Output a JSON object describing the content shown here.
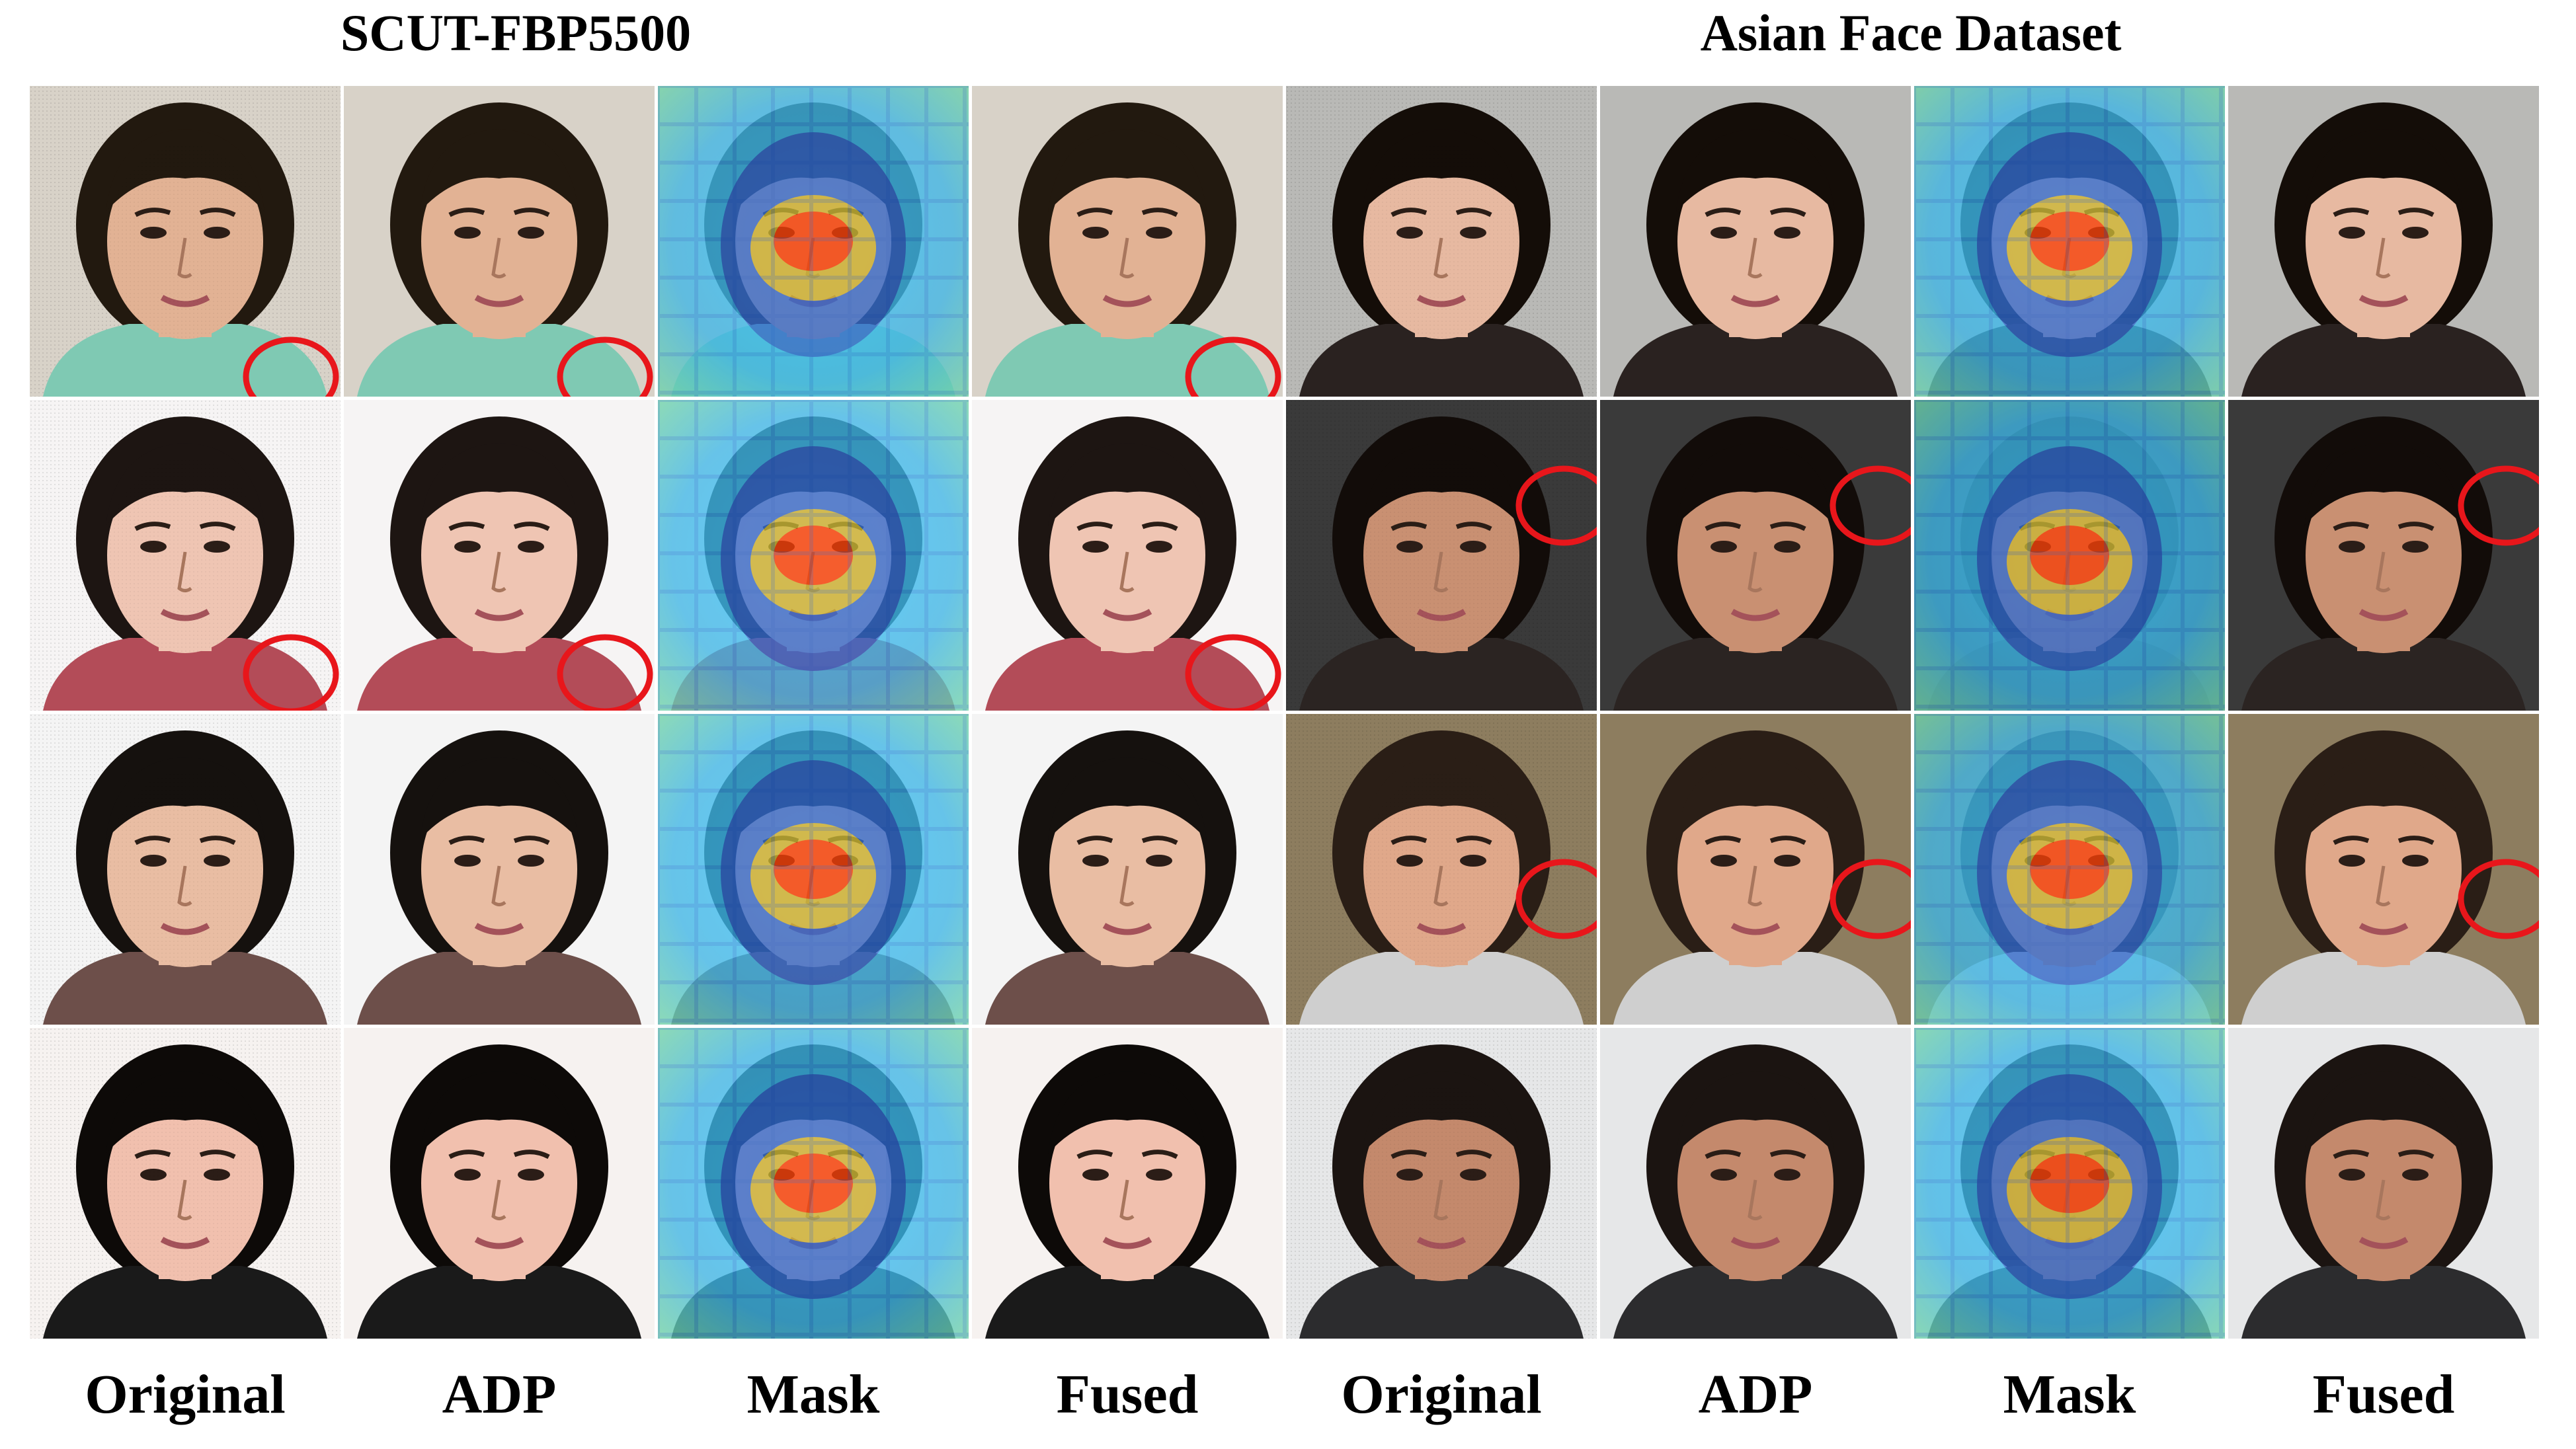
{
  "titles": {
    "left": "SCUT-FBP5500",
    "right": "Asian Face Dataset"
  },
  "columns": {
    "left": [
      "Original",
      "ADP",
      "Mask",
      "Fused"
    ],
    "right": [
      "Original",
      "ADP",
      "Mask",
      "Fused"
    ]
  },
  "colors": {
    "highlight_circle": "#e8161b",
    "heat_hot": "#ff2a00",
    "heat_warm": "#ffd000",
    "heat_cool": "#38c6ff",
    "heat_cold": "#2c2cb8"
  },
  "rows": [
    {
      "left": {
        "bg": "#d8d2c8",
        "skin": "#e2b294",
        "hair": "#22190f",
        "shirt": "#7fc9b3",
        "circled": [
          true,
          true,
          false,
          true
        ]
      },
      "right": {
        "bg": "#b9b9b6",
        "skin": "#e7b9a1",
        "hair": "#140d08",
        "shirt": "#2a2220",
        "circled": [
          false,
          false,
          false,
          false
        ]
      }
    },
    {
      "left": {
        "bg": "#f6f4f4",
        "skin": "#efc5b3",
        "hair": "#1d1512",
        "shirt": "#b34c58",
        "circled": [
          true,
          true,
          false,
          true
        ]
      },
      "right": {
        "bg": "#3a3a3a",
        "skin": "#c99072",
        "hair": "#120c09",
        "shirt": "#2b2422",
        "circled": [
          true,
          true,
          false,
          true
        ]
      }
    },
    {
      "left": {
        "bg": "#f4f4f4",
        "skin": "#e9bda3",
        "hair": "#15110e",
        "shirt": "#6d4f4a",
        "circled": [
          false,
          false,
          false,
          false
        ]
      },
      "right": {
        "bg": "#8d7d5f",
        "skin": "#e0a88a",
        "hair": "#2a1e16",
        "shirt": "#cfcfcf",
        "circled": [
          true,
          true,
          false,
          true
        ]
      }
    },
    {
      "left": {
        "bg": "#f6f2f0",
        "skin": "#f1c0ae",
        "hair": "#0d0a08",
        "shirt": "#1a1a1a",
        "circled": [
          false,
          false,
          false,
          false
        ]
      },
      "right": {
        "bg": "#e6e7e8",
        "skin": "#c4896c",
        "hair": "#1b1411",
        "shirt": "#2c2c2e",
        "circled": [
          false,
          false,
          false,
          false
        ]
      }
    }
  ]
}
